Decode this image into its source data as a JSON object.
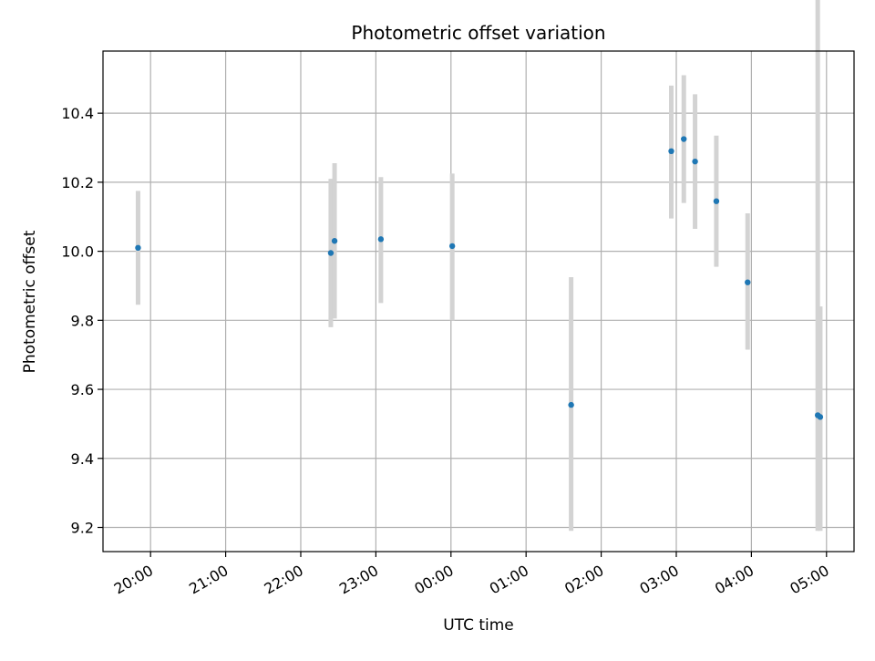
{
  "chart_data": {
    "type": "scatter",
    "title": "Photometric offset variation",
    "xlabel": "UTC time",
    "ylabel": "Photometric offset",
    "grid": true,
    "x_ticks": [
      "20:00",
      "21:00",
      "22:00",
      "23:00",
      "00:00",
      "01:00",
      "02:00",
      "03:00",
      "04:00",
      "05:00"
    ],
    "y_ticks": [
      "9.2",
      "9.4",
      "9.6",
      "9.8",
      "10.0",
      "10.2",
      "10.4"
    ],
    "xlim": [
      "19:22",
      "05:22"
    ],
    "ylim": [
      9.13,
      10.58
    ],
    "colors": {
      "points": "#1f77b4",
      "error_bars": "#d3d3d3",
      "grid": "#b0b0b0"
    },
    "series": [
      {
        "x": [
          "19:50",
          "22:24",
          "22:27",
          "23:04",
          "00:01",
          "01:36",
          "02:56",
          "03:06",
          "03:15",
          "03:32",
          "03:57",
          "04:53",
          "04:55"
        ],
        "y": [
          10.01,
          9.995,
          10.03,
          10.035,
          10.015,
          9.555,
          10.29,
          10.325,
          10.26,
          10.145,
          9.91,
          9.525,
          9.52
        ],
        "yerr_low": [
          9.845,
          9.78,
          9.805,
          9.85,
          9.8,
          9.19,
          10.095,
          10.14,
          10.065,
          9.955,
          9.715,
          9.19,
          9.19
        ],
        "yerr_high": [
          10.175,
          10.21,
          10.255,
          10.215,
          10.225,
          9.925,
          10.48,
          10.51,
          10.455,
          10.335,
          10.11,
          10.865,
          9.84
        ]
      }
    ]
  }
}
